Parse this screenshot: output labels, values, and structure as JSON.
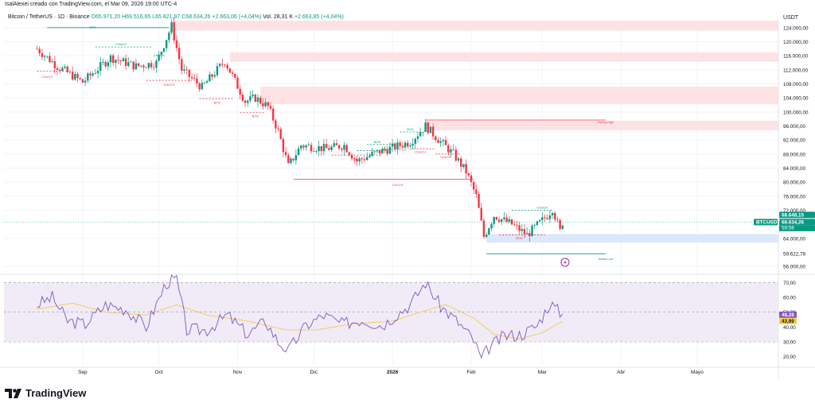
{
  "header": {
    "credit": "IsalAlexei creado con TradingView.com, el Mar 09, 2026 19:00 UTC-4",
    "symbol": "Bitcoin / TetherUS · 1D · Binance",
    "open": "O65.971,20",
    "high": "H69.516,65",
    "low": "L65.821,97",
    "close": "C68.634,26",
    "change": "+2.663,06 (+4,04%)",
    "volume": "Vol. 28,31 K",
    "vol_change": "+2.663,85 (+4,04%)",
    "currency": "USDT"
  },
  "footer": {
    "brand": "TradingView"
  },
  "colors": {
    "up": "#089981",
    "down": "#f23645",
    "rsi": "#7e57c2",
    "rsi_ma": "#f7c948",
    "zone": "#fde2e4",
    "demand": "#dbe8fb"
  },
  "chart_data": {
    "type": "candlestick",
    "x_ticks": [
      "Sep",
      "Oct",
      "Nov",
      "Dic",
      "2026",
      "Feb",
      "Mar",
      "Abr",
      "Mayo"
    ],
    "price_ticks": [
      "124.000,00",
      "120.000,00",
      "116.000,00",
      "112.000,00",
      "108.000,00",
      "104.000,00",
      "100.000,00",
      "96.000,00",
      "92.000,00",
      "88.000,00",
      "84.000,00",
      "80.000,00",
      "76.000,00",
      "72.000,00",
      "64.000,00",
      "56.000,00"
    ],
    "price_ticks_values": [
      124000,
      120000,
      116000,
      112000,
      108000,
      104000,
      100000,
      96000,
      92000,
      88000,
      84000,
      80000,
      76000,
      72000,
      64000,
      56000
    ],
    "price_range": [
      54000,
      126000
    ],
    "price_labels": {
      "last": "68.648,15",
      "symbol_tag": "BTCUSDT",
      "price": "68.634,26",
      "countdown": "59:58",
      "low_level": "59.622,79"
    },
    "price_path": [
      [
        "2025-08-14",
        118000
      ],
      [
        "2025-08-22",
        113000
      ],
      [
        "2025-09-01",
        108500
      ],
      [
        "2025-09-12",
        115500
      ],
      [
        "2025-09-22",
        113000
      ],
      [
        "2025-09-30",
        114000
      ],
      [
        "2025-10-06",
        124500
      ],
      [
        "2025-10-10",
        112000
      ],
      [
        "2025-10-18",
        107000
      ],
      [
        "2025-10-27",
        114500
      ],
      [
        "2025-11-04",
        103000
      ],
      [
        "2025-11-08",
        104000
      ],
      [
        "2025-11-13",
        101500
      ],
      [
        "2025-11-17",
        94500
      ],
      [
        "2025-11-21",
        84500
      ],
      [
        "2025-11-26",
        90500
      ],
      [
        "2025-12-06",
        89500
      ],
      [
        "2025-12-13",
        90500
      ],
      [
        "2025-12-18",
        86000
      ],
      [
        "2025-12-26",
        88500
      ],
      [
        "2026-01-02",
        90000
      ],
      [
        "2026-01-08",
        91500
      ],
      [
        "2026-01-14",
        96000
      ],
      [
        "2026-01-20",
        91500
      ],
      [
        "2026-01-25",
        88000
      ],
      [
        "2026-01-30",
        83000
      ],
      [
        "2026-02-03",
        76000
      ],
      [
        "2026-02-06",
        64500
      ],
      [
        "2026-02-10",
        70500
      ],
      [
        "2026-02-17",
        68000
      ],
      [
        "2026-02-23",
        65000
      ],
      [
        "2026-03-03",
        70500
      ],
      [
        "2026-03-05",
        72500
      ],
      [
        "2026-03-08",
        66000
      ],
      [
        "2026-03-09",
        68634
      ]
    ],
    "annotations": [
      {
        "text": "BOS",
        "date": "2025-09-05",
        "price": 124300,
        "color": "#089981"
      },
      {
        "text": "CHoCH",
        "date": "2025-09-16",
        "price": 119400,
        "color": "#089981"
      },
      {
        "text": "CHoCH",
        "date": "2025-08-18",
        "price": 110200,
        "color": "#f23645"
      },
      {
        "text": "CHoCH",
        "date": "2025-10-05",
        "price": 107900,
        "color": "#f23645"
      },
      {
        "text": "CHoCH",
        "date": "2025-10-01",
        "price": 116300,
        "color": "#089981"
      },
      {
        "text": "BOS",
        "date": "2025-10-24",
        "price": 102800,
        "color": "#f23645"
      },
      {
        "text": "BOS",
        "date": "2025-11-08",
        "price": 98900,
        "color": "#f23645"
      },
      {
        "text": "CHoCH",
        "date": "2026-01-03",
        "price": 79400,
        "color": "#f23645"
      },
      {
        "text": "BOS",
        "date": "2026-01-08",
        "price": 95200,
        "color": "#089981"
      },
      {
        "text": "Swing High",
        "date": "2026-03-26",
        "price": 97300,
        "color": "#f23645"
      },
      {
        "text": "BOS",
        "date": "2025-12-17",
        "price": 86600,
        "color": "#f23645"
      },
      {
        "text": "CHoCH",
        "date": "2025-12-30",
        "price": 89600,
        "color": "#089981"
      },
      {
        "text": "BOS",
        "date": "2025-12-26",
        "price": 91600,
        "color": "#089981"
      },
      {
        "text": "CHoCH",
        "date": "2026-01-12",
        "price": 88800,
        "color": "#f23645"
      },
      {
        "text": "CHoCH",
        "date": "2026-01-22",
        "price": 87300,
        "color": "#f23645"
      },
      {
        "text": "BOS",
        "date": "2026-02-20",
        "price": 64200,
        "color": "#f23645"
      },
      {
        "text": "CHoCH",
        "date": "2026-03-01",
        "price": 72900,
        "color": "#089981"
      },
      {
        "text": "Weak Low",
        "date": "2026-03-26",
        "price": 58300,
        "color": "#089981"
      }
    ],
    "structure_lines": [
      {
        "from": "2025-08-18",
        "to": "2025-10-05",
        "price": 124000,
        "color": "#089981",
        "dash": false
      },
      {
        "from": "2025-09-06",
        "to": "2025-09-28",
        "price": 118500,
        "color": "#089981",
        "dash": true
      },
      {
        "from": "2025-08-14",
        "to": "2025-08-26",
        "price": 111600,
        "color": "#f23645",
        "dash": true
      },
      {
        "from": "2025-09-26",
        "to": "2025-10-14",
        "price": 109000,
        "color": "#f23645",
        "dash": true
      },
      {
        "from": "2025-10-17",
        "to": "2025-10-30",
        "price": 103800,
        "color": "#f23645",
        "dash": true
      },
      {
        "from": "2025-11-02",
        "to": "2025-11-12",
        "price": 99800,
        "color": "#f23645",
        "dash": true
      },
      {
        "from": "2025-11-23",
        "to": "2026-02-02",
        "price": 80800,
        "color": "#f23645",
        "dash": false
      },
      {
        "from": "2026-01-04",
        "to": "2026-01-12",
        "price": 94300,
        "color": "#089981",
        "dash": true
      },
      {
        "from": "2026-01-14",
        "to": "2026-03-26",
        "price": 97700,
        "color": "#f23645",
        "dash": false
      },
      {
        "from": "2025-12-08",
        "to": "2025-12-28",
        "price": 87700,
        "color": "#f23645",
        "dash": true
      },
      {
        "from": "2025-12-18",
        "to": "2025-12-30",
        "price": 89000,
        "color": "#089981",
        "dash": true
      },
      {
        "from": "2025-12-22",
        "to": "2026-01-02",
        "price": 90800,
        "color": "#089981",
        "dash": true
      },
      {
        "from": "2026-01-08",
        "to": "2026-01-18",
        "price": 89500,
        "color": "#f23645",
        "dash": true
      },
      {
        "from": "2026-01-18",
        "to": "2026-01-28",
        "price": 88000,
        "color": "#f23645",
        "dash": true
      },
      {
        "from": "2026-02-12",
        "to": "2026-03-02",
        "price": 65000,
        "color": "#f23645",
        "dash": true
      },
      {
        "from": "2026-02-17",
        "to": "2026-03-05",
        "price": 72000,
        "color": "#089981",
        "dash": true
      },
      {
        "from": "2026-02-07",
        "to": "2026-03-26",
        "price": 59623,
        "color": "#089981",
        "dash": false
      }
    ],
    "zones": [
      {
        "from": "2025-10-06",
        "to": "2026-06-30",
        "top": 126000,
        "bottom": 123200,
        "kind": "supply"
      },
      {
        "from": "2025-10-29",
        "to": "2026-06-30",
        "top": 117000,
        "bottom": 114300,
        "kind": "supply"
      },
      {
        "from": "2025-11-10",
        "to": "2026-06-30",
        "top": 107200,
        "bottom": 102200,
        "kind": "supply"
      },
      {
        "from": "2026-01-14",
        "to": "2026-06-30",
        "top": 97500,
        "bottom": 94800,
        "kind": "supply"
      },
      {
        "from": "2026-02-07",
        "to": "2026-06-30",
        "top": 65200,
        "bottom": 62800,
        "kind": "demand"
      }
    ],
    "rsi": {
      "ticks": [
        "70,00",
        "60,00",
        "50,00",
        "40,00",
        "30,00",
        "20,00"
      ],
      "ticks_values": [
        70,
        60,
        50,
        40,
        30,
        20
      ],
      "range": [
        15,
        75
      ],
      "overbought": 70,
      "middle": 50,
      "oversold": 30,
      "value_label": "48,28",
      "ma_label": "43,99",
      "path": [
        [
          "2025-08-14",
          55
        ],
        [
          "2025-08-20",
          60
        ],
        [
          "2025-08-26",
          44
        ],
        [
          "2025-09-02",
          42
        ],
        [
          "2025-09-10",
          55
        ],
        [
          "2025-09-18",
          52
        ],
        [
          "2025-09-26",
          40
        ],
        [
          "2025-10-04",
          70
        ],
        [
          "2025-10-08",
          72
        ],
        [
          "2025-10-12",
          38
        ],
        [
          "2025-10-20",
          38
        ],
        [
          "2025-10-28",
          48
        ],
        [
          "2025-11-05",
          35
        ],
        [
          "2025-11-12",
          44
        ],
        [
          "2025-11-17",
          30
        ],
        [
          "2025-11-21",
          24
        ],
        [
          "2025-11-28",
          41
        ],
        [
          "2025-12-05",
          48
        ],
        [
          "2025-12-12",
          42
        ],
        [
          "2025-12-20",
          45
        ],
        [
          "2025-12-28",
          41
        ],
        [
          "2026-01-03",
          49
        ],
        [
          "2026-01-08",
          55
        ],
        [
          "2026-01-14",
          70
        ],
        [
          "2026-01-20",
          54
        ],
        [
          "2026-01-27",
          43
        ],
        [
          "2026-02-02",
          31
        ],
        [
          "2026-02-05",
          18
        ],
        [
          "2026-02-08",
          26
        ],
        [
          "2026-02-14",
          34
        ],
        [
          "2026-02-21",
          35
        ],
        [
          "2026-02-27",
          41
        ],
        [
          "2026-03-04",
          56
        ],
        [
          "2026-03-09",
          48.28
        ]
      ],
      "ma_path": [
        [
          "2025-08-14",
          52
        ],
        [
          "2025-08-28",
          56
        ],
        [
          "2025-09-10",
          50
        ],
        [
          "2025-09-26",
          48
        ],
        [
          "2025-10-08",
          55
        ],
        [
          "2025-10-20",
          48
        ],
        [
          "2025-11-05",
          44
        ],
        [
          "2025-11-20",
          38
        ],
        [
          "2025-12-02",
          38
        ],
        [
          "2025-12-16",
          42
        ],
        [
          "2026-01-01",
          44
        ],
        [
          "2026-01-12",
          50
        ],
        [
          "2026-01-22",
          55
        ],
        [
          "2026-02-02",
          46
        ],
        [
          "2026-02-10",
          35
        ],
        [
          "2026-02-20",
          32
        ],
        [
          "2026-03-01",
          36
        ],
        [
          "2026-03-09",
          43.99
        ]
      ]
    }
  }
}
